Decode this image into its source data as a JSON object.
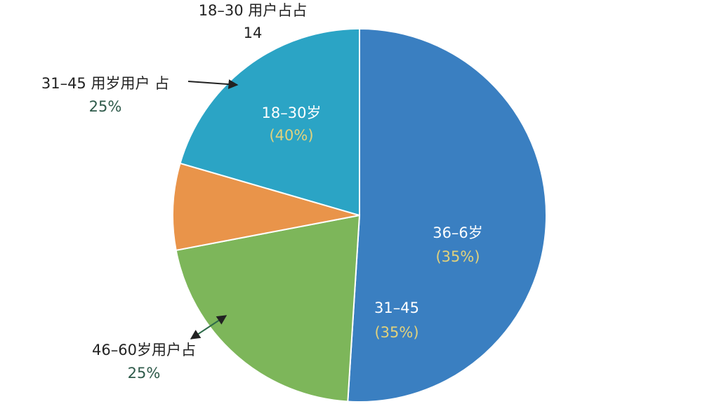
{
  "chart_data": {
    "type": "pie",
    "values": [
      51,
      21,
      7.5,
      20.5
    ],
    "colors": [
      "#3a7fc1",
      "#7db65a",
      "#e9944a",
      "#2ba4c5"
    ],
    "annotations": [
      {
        "text": "36–6岁",
        "sub": "(35%)"
      },
      {
        "text": "31–45",
        "sub": "(35%)"
      },
      {
        "text": "18–30岁",
        "sub": "(40%)"
      },
      {
        "text": "18–30 用户占占",
        "sub": "14"
      },
      {
        "text": "31–45 用岁用户 占",
        "sub": "25%"
      },
      {
        "text": "46–60岁用户占",
        "sub": "25%"
      }
    ]
  }
}
